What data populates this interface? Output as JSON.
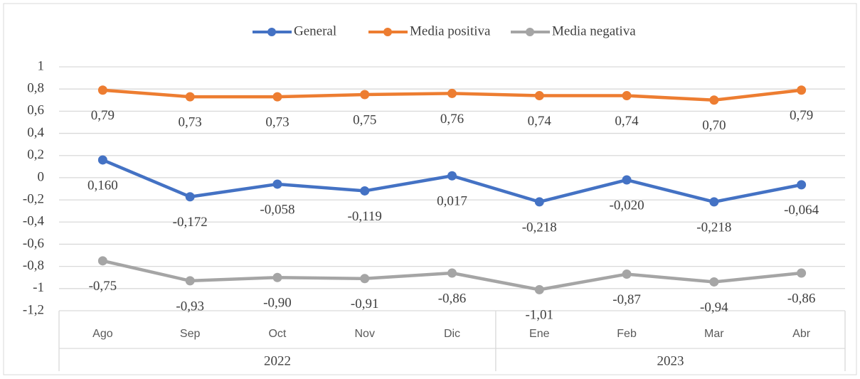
{
  "chart_data": {
    "type": "line",
    "categories": [
      "Ago",
      "Sep",
      "Oct",
      "Nov",
      "Dic",
      "Ene",
      "Feb",
      "Mar",
      "Abr"
    ],
    "years": [
      "2022",
      null,
      null,
      null,
      null,
      "2023",
      null,
      null,
      null
    ],
    "series": [
      {
        "name": "General",
        "color": "#4472c4",
        "values": [
          0.16,
          -0.172,
          -0.058,
          -0.119,
          0.017,
          -0.218,
          -0.02,
          -0.218,
          -0.064
        ],
        "value_labels": [
          "0,160",
          "-0,172",
          "-0,058",
          "-0,119",
          "0,017",
          "-0,218",
          "-0,020",
          "-0,218",
          "-0,064"
        ]
      },
      {
        "name": "Media positiva",
        "color": "#ed7d31",
        "values": [
          0.79,
          0.73,
          0.73,
          0.75,
          0.76,
          0.74,
          0.74,
          0.7,
          0.79
        ],
        "value_labels": [
          "0,79",
          "0,73",
          "0,73",
          "0,75",
          "0,76",
          "0,74",
          "0,74",
          "0,70",
          "0,79"
        ]
      },
      {
        "name": "Media negativa",
        "color": "#a5a5a5",
        "values": [
          -0.75,
          -0.93,
          -0.9,
          -0.91,
          -0.86,
          -1.01,
          -0.87,
          -0.94,
          -0.86
        ],
        "value_labels": [
          "-0,75",
          "-0,93",
          "-0,90",
          "-0,91",
          "-0,86",
          "-1,01",
          "-0,87",
          "-0,94",
          "-0,86"
        ]
      }
    ],
    "ylim": [
      -1.2,
      1
    ],
    "yticks": [
      {
        "value": -1.2,
        "label": "-1,2"
      },
      -1,
      {
        "value": -0.8,
        "label": "-0,8"
      },
      {
        "value": -0.6,
        "label": "-0,6"
      },
      {
        "value": -0.4,
        "label": "-0,4"
      },
      {
        "value": -0.2,
        "label": "-0,2"
      },
      0,
      {
        "value": 0.2,
        "label": "0,2"
      },
      {
        "value": 0.4,
        "label": "0,4"
      },
      {
        "value": 0.6,
        "label": "0,6"
      },
      {
        "value": 0.8,
        "label": "0,8"
      },
      1
    ],
    "grid": true,
    "legend": "top"
  }
}
